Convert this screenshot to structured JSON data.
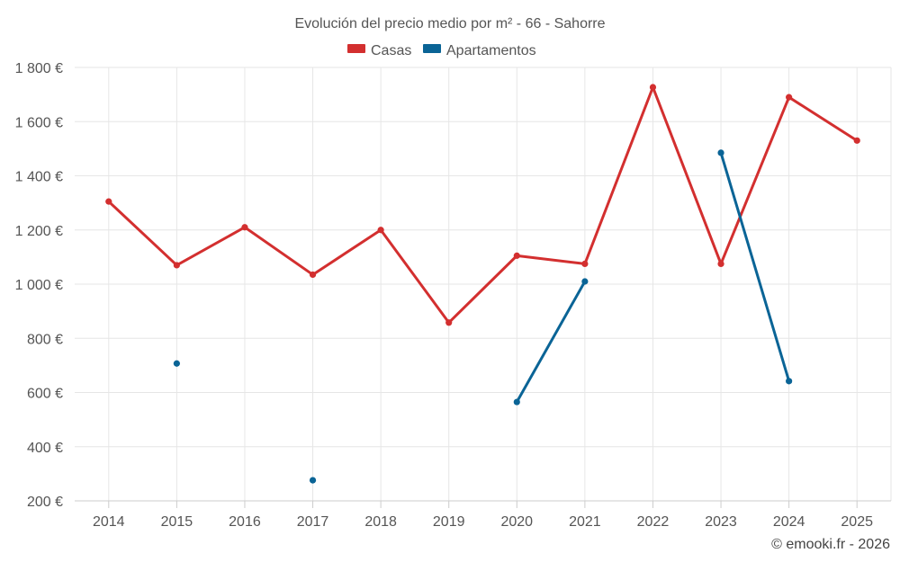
{
  "chart_data": {
    "type": "line",
    "title": "Evolución del precio medio por m² - 66 - Sahorre",
    "categories": [
      "2014",
      "2015",
      "2016",
      "2017",
      "2018",
      "2019",
      "2020",
      "2021",
      "2022",
      "2023",
      "2024",
      "2025"
    ],
    "ylim": [
      200,
      1800
    ],
    "yticks": [
      200,
      400,
      600,
      800,
      1000,
      1200,
      1400,
      1600,
      1800
    ],
    "ytick_labels": [
      "200 €",
      "400 €",
      "600 €",
      "800 €",
      "1 000 €",
      "1 200 €",
      "1 400 €",
      "1 600 €",
      "1 800 €"
    ],
    "grid": true,
    "legend_position": "top-center",
    "series": [
      {
        "name": "Casas",
        "color": "#d32f2f",
        "values": [
          1305,
          1070,
          1210,
          1035,
          1200,
          858,
          1105,
          1075,
          1727,
          1075,
          1690,
          1530
        ]
      },
      {
        "name": "Apartamentos",
        "color": "#0a6496",
        "values": [
          null,
          707,
          null,
          276,
          null,
          null,
          565,
          1010,
          null,
          1485,
          642,
          null
        ]
      }
    ],
    "xlabel": "",
    "ylabel": ""
  },
  "credit": "© emooki.fr - 2026"
}
